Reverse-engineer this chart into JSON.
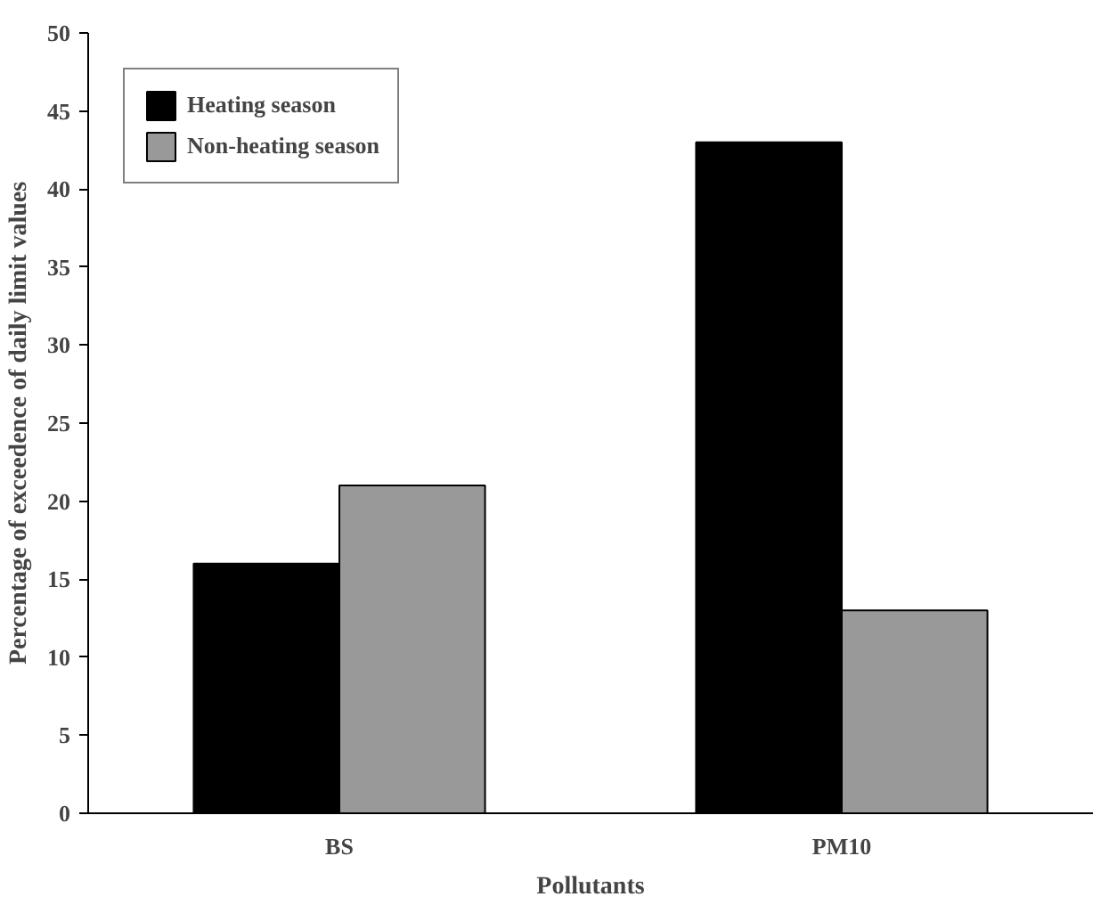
{
  "chart_data": {
    "type": "bar",
    "xlabel": "Pollutants",
    "ylabel": "Percentage of exceedence of daily limit values",
    "categories": [
      "BS",
      "PM10"
    ],
    "series": [
      {
        "name": "Heating season",
        "color": "#000000",
        "values": [
          16,
          43
        ]
      },
      {
        "name": "Non-heating season",
        "color": "#999999",
        "values": [
          21,
          13
        ]
      }
    ],
    "ylim": [
      0,
      50
    ],
    "yticks": [
      0,
      5,
      10,
      15,
      20,
      25,
      30,
      35,
      40,
      45,
      50
    ],
    "grid": false,
    "legend": "top left"
  }
}
